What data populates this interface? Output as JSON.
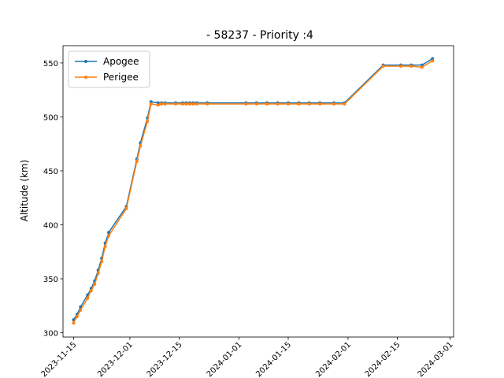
{
  "chart_data": {
    "type": "line",
    "title": "- 58237 - Priority :4",
    "xlabel": "",
    "ylabel": "Altitude (km)",
    "ylim": [
      296,
      566
    ],
    "xlim": [
      "2023-11-12",
      "2024-03-02"
    ],
    "x_ticks": [
      "2023-11-15",
      "2023-12-01",
      "2023-12-15",
      "2024-01-01",
      "2024-01-15",
      "2024-02-01",
      "2024-02-15",
      "2024-03-01"
    ],
    "y_ticks": [
      300,
      350,
      400,
      450,
      500,
      550
    ],
    "grid": false,
    "legend_position": "top-left",
    "series": [
      {
        "name": "Apogee",
        "color": "#1f77b4",
        "x": [
          "2023-11-15",
          "2023-11-16",
          "2023-11-17",
          "2023-11-19",
          "2023-11-20",
          "2023-11-21",
          "2023-11-22",
          "2023-11-23",
          "2023-11-24",
          "2023-11-25",
          "2023-11-30",
          "2023-12-03",
          "2023-12-04",
          "2023-12-06",
          "2023-12-07",
          "2023-12-09",
          "2023-12-10",
          "2023-12-11",
          "2023-12-14",
          "2023-12-16",
          "2023-12-17",
          "2023-12-18",
          "2023-12-19",
          "2023-12-20",
          "2023-12-23",
          "2024-01-03",
          "2024-01-06",
          "2024-01-09",
          "2024-01-12",
          "2024-01-15",
          "2024-01-18",
          "2024-01-21",
          "2024-01-24",
          "2024-01-28",
          "2024-01-31",
          "2024-02-11",
          "2024-02-16",
          "2024-02-19",
          "2024-02-22",
          "2024-02-25"
        ],
        "values": [
          312,
          317,
          324,
          335,
          341,
          348,
          358,
          369,
          383,
          393,
          417,
          461,
          476,
          499,
          514,
          513,
          513,
          513,
          513,
          513,
          513,
          513,
          513,
          513,
          513,
          513,
          513,
          513,
          513,
          513,
          513,
          513,
          513,
          513,
          513,
          548,
          548,
          548,
          548,
          554
        ]
      },
      {
        "name": "Perigee",
        "color": "#ff7f0e",
        "x": [
          "2023-11-15",
          "2023-11-16",
          "2023-11-17",
          "2023-11-19",
          "2023-11-20",
          "2023-11-21",
          "2023-11-22",
          "2023-11-23",
          "2023-11-24",
          "2023-11-25",
          "2023-11-30",
          "2023-12-03",
          "2023-12-04",
          "2023-12-06",
          "2023-12-07",
          "2023-12-09",
          "2023-12-10",
          "2023-12-11",
          "2023-12-14",
          "2023-12-16",
          "2023-12-17",
          "2023-12-18",
          "2023-12-19",
          "2023-12-20",
          "2023-12-23",
          "2024-01-03",
          "2024-01-06",
          "2024-01-09",
          "2024-01-12",
          "2024-01-15",
          "2024-01-18",
          "2024-01-21",
          "2024-01-24",
          "2024-01-28",
          "2024-01-31",
          "2024-02-11",
          "2024-02-16",
          "2024-02-19",
          "2024-02-22",
          "2024-02-25"
        ],
        "values": [
          309,
          315,
          321,
          332,
          339,
          345,
          355,
          366,
          380,
          390,
          415,
          459,
          473,
          496,
          512,
          511,
          512,
          512,
          512,
          512,
          512,
          512,
          512,
          512,
          512,
          512,
          512,
          512,
          512,
          512,
          512,
          512,
          512,
          512,
          512,
          547,
          547,
          547,
          546,
          552
        ]
      }
    ]
  }
}
